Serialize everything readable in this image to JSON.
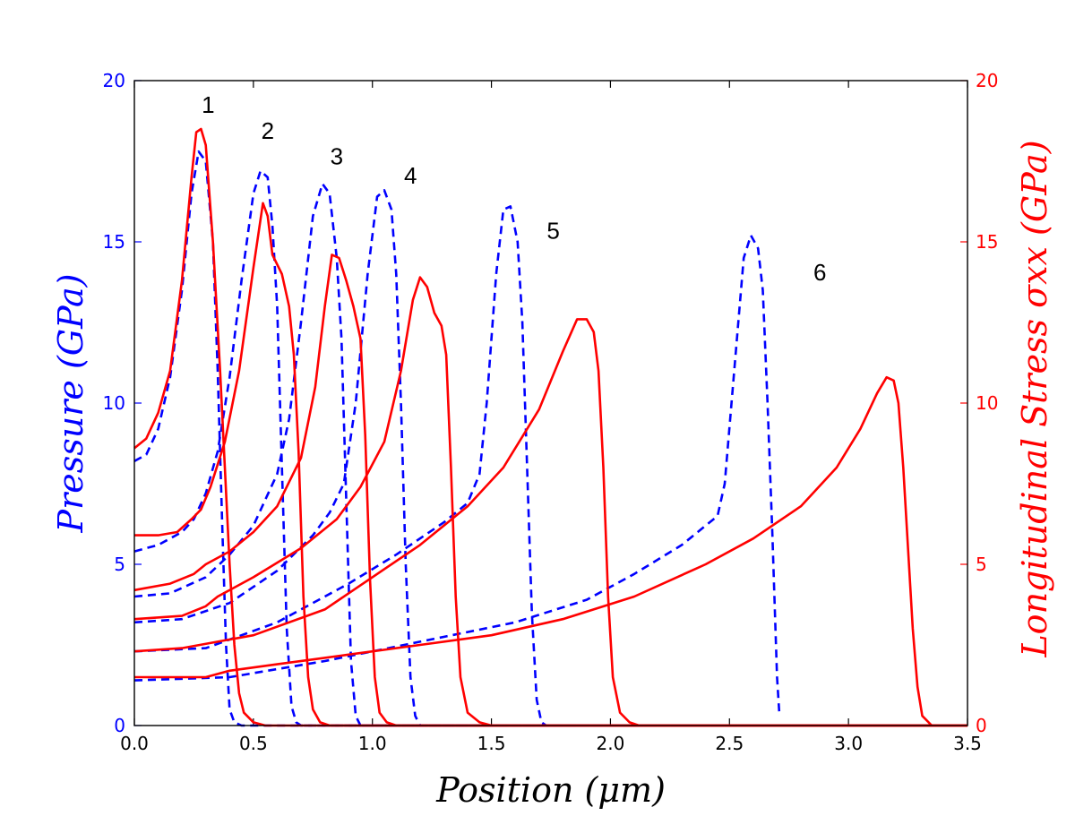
{
  "chart_data": {
    "type": "line",
    "xlabel": "Position (μm)",
    "ylabel_left": "Pressure (GPa)",
    "ylabel_right": "Longitudinal Stress σxx (GPa)",
    "xlim": [
      0.0,
      3.5
    ],
    "ylim_left": [
      0,
      20
    ],
    "ylim_right": [
      0,
      20
    ],
    "x_ticks": [
      "0.0",
      "0.5",
      "1.0",
      "1.5",
      "2.0",
      "2.5",
      "3.0",
      "3.5"
    ],
    "y_ticks_left": [
      "0",
      "5",
      "10",
      "15",
      "20"
    ],
    "y_ticks_right": [
      "0",
      "5",
      "10",
      "15",
      "20"
    ],
    "grid": false,
    "colors": {
      "pressure": "#0000ff",
      "stress": "#ff0000",
      "axes": "#000000"
    },
    "curve_labels": [
      {
        "text": "1",
        "x": 0.31,
        "y": 19.0
      },
      {
        "text": "2",
        "x": 0.56,
        "y": 18.2
      },
      {
        "text": "3",
        "x": 0.85,
        "y": 17.4
      },
      {
        "text": "4",
        "x": 1.16,
        "y": 16.8
      },
      {
        "text": "5",
        "x": 1.76,
        "y": 15.1
      },
      {
        "text": "6",
        "x": 2.88,
        "y": 13.8
      }
    ],
    "series": [
      {
        "group": "pressure",
        "style": "dashed",
        "points": [
          [
            0.0,
            8.2
          ],
          [
            0.05,
            8.4
          ],
          [
            0.1,
            9.2
          ],
          [
            0.15,
            10.8
          ],
          [
            0.2,
            13.5
          ],
          [
            0.24,
            16.5
          ],
          [
            0.27,
            17.8
          ],
          [
            0.3,
            17.5
          ],
          [
            0.33,
            15.0
          ],
          [
            0.35,
            11.0
          ],
          [
            0.37,
            6.0
          ],
          [
            0.385,
            2.5
          ],
          [
            0.4,
            0.5
          ],
          [
            0.42,
            0.1
          ],
          [
            0.45,
            0.0
          ],
          [
            3.5,
            0.0
          ]
        ]
      },
      {
        "group": "pressure",
        "style": "dashed",
        "points": [
          [
            0.0,
            5.4
          ],
          [
            0.1,
            5.6
          ],
          [
            0.2,
            6.0
          ],
          [
            0.25,
            6.4
          ],
          [
            0.3,
            7.2
          ],
          [
            0.35,
            8.5
          ],
          [
            0.4,
            10.8
          ],
          [
            0.45,
            13.8
          ],
          [
            0.5,
            16.5
          ],
          [
            0.53,
            17.2
          ],
          [
            0.56,
            17.0
          ],
          [
            0.58,
            15.5
          ],
          [
            0.6,
            13.0
          ],
          [
            0.62,
            8.0
          ],
          [
            0.64,
            3.0
          ],
          [
            0.66,
            0.6
          ],
          [
            0.68,
            0.1
          ],
          [
            0.7,
            0.0
          ],
          [
            3.5,
            0.0
          ]
        ]
      },
      {
        "group": "pressure",
        "style": "dashed",
        "points": [
          [
            0.0,
            4.0
          ],
          [
            0.15,
            4.1
          ],
          [
            0.3,
            4.6
          ],
          [
            0.4,
            5.3
          ],
          [
            0.5,
            6.2
          ],
          [
            0.55,
            7.0
          ],
          [
            0.6,
            7.8
          ],
          [
            0.65,
            9.5
          ],
          [
            0.7,
            12.5
          ],
          [
            0.75,
            15.8
          ],
          [
            0.79,
            16.8
          ],
          [
            0.82,
            16.5
          ],
          [
            0.85,
            14.5
          ],
          [
            0.87,
            12.0
          ],
          [
            0.89,
            7.0
          ],
          [
            0.91,
            2.0
          ],
          [
            0.93,
            0.3
          ],
          [
            0.95,
            0.0
          ],
          [
            3.5,
            0.0
          ]
        ]
      },
      {
        "group": "pressure",
        "style": "dashed",
        "points": [
          [
            0.0,
            3.2
          ],
          [
            0.2,
            3.3
          ],
          [
            0.4,
            3.8
          ],
          [
            0.6,
            4.8
          ],
          [
            0.75,
            5.9
          ],
          [
            0.82,
            6.6
          ],
          [
            0.88,
            7.5
          ],
          [
            0.93,
            10.0
          ],
          [
            0.98,
            14.0
          ],
          [
            1.02,
            16.4
          ],
          [
            1.05,
            16.6
          ],
          [
            1.08,
            16.0
          ],
          [
            1.1,
            14.0
          ],
          [
            1.12,
            10.0
          ],
          [
            1.14,
            5.0
          ],
          [
            1.16,
            1.5
          ],
          [
            1.18,
            0.3
          ],
          [
            1.2,
            0.0
          ],
          [
            3.5,
            0.0
          ]
        ]
      },
      {
        "group": "pressure",
        "style": "dashed",
        "points": [
          [
            0.0,
            2.3
          ],
          [
            0.3,
            2.4
          ],
          [
            0.6,
            3.2
          ],
          [
            0.9,
            4.4
          ],
          [
            1.1,
            5.3
          ],
          [
            1.3,
            6.3
          ],
          [
            1.4,
            6.9
          ],
          [
            1.45,
            7.8
          ],
          [
            1.48,
            10.0
          ],
          [
            1.52,
            14.0
          ],
          [
            1.55,
            16.0
          ],
          [
            1.58,
            16.1
          ],
          [
            1.61,
            15.0
          ],
          [
            1.63,
            12.5
          ],
          [
            1.65,
            8.0
          ],
          [
            1.67,
            3.5
          ],
          [
            1.69,
            0.8
          ],
          [
            1.71,
            0.1
          ],
          [
            1.73,
            0.0
          ],
          [
            3.5,
            0.0
          ]
        ]
      },
      {
        "group": "pressure",
        "style": "dashed",
        "points": [
          [
            0.0,
            1.4
          ],
          [
            0.4,
            1.5
          ],
          [
            0.8,
            2.0
          ],
          [
            1.2,
            2.6
          ],
          [
            1.6,
            3.2
          ],
          [
            1.9,
            3.9
          ],
          [
            2.1,
            4.7
          ],
          [
            2.3,
            5.6
          ],
          [
            2.45,
            6.5
          ],
          [
            2.48,
            7.5
          ],
          [
            2.52,
            11.0
          ],
          [
            2.56,
            14.5
          ],
          [
            2.59,
            15.2
          ],
          [
            2.62,
            14.8
          ],
          [
            2.64,
            13.5
          ],
          [
            2.66,
            10.0
          ],
          [
            2.68,
            6.0
          ],
          [
            2.7,
            1.5
          ],
          [
            2.71,
            0.3
          ]
        ]
      },
      {
        "group": "stress",
        "style": "solid",
        "points": [
          [
            0.0,
            8.6
          ],
          [
            0.05,
            8.9
          ],
          [
            0.1,
            9.7
          ],
          [
            0.15,
            11.0
          ],
          [
            0.2,
            13.8
          ],
          [
            0.24,
            17.0
          ],
          [
            0.26,
            18.4
          ],
          [
            0.28,
            18.5
          ],
          [
            0.3,
            18.0
          ],
          [
            0.33,
            15.0
          ],
          [
            0.36,
            11.0
          ],
          [
            0.38,
            8.0
          ],
          [
            0.4,
            5.0
          ],
          [
            0.42,
            2.5
          ],
          [
            0.44,
            1.0
          ],
          [
            0.46,
            0.4
          ],
          [
            0.5,
            0.1
          ],
          [
            0.55,
            0.0
          ],
          [
            3.5,
            0.0
          ]
        ]
      },
      {
        "group": "stress",
        "style": "solid",
        "points": [
          [
            0.0,
            5.9
          ],
          [
            0.1,
            5.9
          ],
          [
            0.18,
            6.0
          ],
          [
            0.24,
            6.4
          ],
          [
            0.28,
            6.7
          ],
          [
            0.32,
            7.4
          ],
          [
            0.38,
            8.8
          ],
          [
            0.44,
            11.0
          ],
          [
            0.5,
            14.2
          ],
          [
            0.54,
            16.2
          ],
          [
            0.56,
            15.8
          ],
          [
            0.58,
            14.6
          ],
          [
            0.62,
            14.0
          ],
          [
            0.65,
            13.0
          ],
          [
            0.67,
            11.5
          ],
          [
            0.69,
            8.5
          ],
          [
            0.71,
            4.0
          ],
          [
            0.73,
            1.5
          ],
          [
            0.75,
            0.5
          ],
          [
            0.78,
            0.1
          ],
          [
            0.82,
            0.0
          ],
          [
            3.5,
            0.0
          ]
        ]
      },
      {
        "group": "stress",
        "style": "solid",
        "points": [
          [
            0.0,
            4.2
          ],
          [
            0.15,
            4.4
          ],
          [
            0.25,
            4.7
          ],
          [
            0.3,
            5.0
          ],
          [
            0.4,
            5.4
          ],
          [
            0.5,
            6.0
          ],
          [
            0.6,
            6.8
          ],
          [
            0.7,
            8.3
          ],
          [
            0.76,
            10.5
          ],
          [
            0.8,
            13.0
          ],
          [
            0.83,
            14.6
          ],
          [
            0.86,
            14.5
          ],
          [
            0.89,
            13.8
          ],
          [
            0.92,
            13.0
          ],
          [
            0.95,
            12.0
          ],
          [
            0.97,
            9.0
          ],
          [
            0.99,
            4.5
          ],
          [
            1.01,
            1.5
          ],
          [
            1.03,
            0.4
          ],
          [
            1.06,
            0.1
          ],
          [
            1.1,
            0.0
          ],
          [
            3.5,
            0.0
          ]
        ]
      },
      {
        "group": "stress",
        "style": "solid",
        "points": [
          [
            0.0,
            3.3
          ],
          [
            0.2,
            3.4
          ],
          [
            0.3,
            3.7
          ],
          [
            0.35,
            4.0
          ],
          [
            0.5,
            4.6
          ],
          [
            0.7,
            5.5
          ],
          [
            0.85,
            6.4
          ],
          [
            0.95,
            7.4
          ],
          [
            1.05,
            8.8
          ],
          [
            1.12,
            11.0
          ],
          [
            1.17,
            13.2
          ],
          [
            1.2,
            13.9
          ],
          [
            1.23,
            13.6
          ],
          [
            1.26,
            12.8
          ],
          [
            1.29,
            12.4
          ],
          [
            1.31,
            11.5
          ],
          [
            1.33,
            8.0
          ],
          [
            1.35,
            4.0
          ],
          [
            1.37,
            1.5
          ],
          [
            1.4,
            0.4
          ],
          [
            1.45,
            0.1
          ],
          [
            1.5,
            0.0
          ],
          [
            3.5,
            0.0
          ]
        ]
      },
      {
        "group": "stress",
        "style": "solid",
        "points": [
          [
            0.0,
            2.3
          ],
          [
            0.2,
            2.4
          ],
          [
            0.35,
            2.6
          ],
          [
            0.5,
            2.8
          ],
          [
            0.8,
            3.6
          ],
          [
            1.0,
            4.6
          ],
          [
            1.2,
            5.6
          ],
          [
            1.4,
            6.8
          ],
          [
            1.55,
            8.0
          ],
          [
            1.7,
            9.8
          ],
          [
            1.8,
            11.6
          ],
          [
            1.86,
            12.6
          ],
          [
            1.9,
            12.6
          ],
          [
            1.93,
            12.2
          ],
          [
            1.95,
            11.0
          ],
          [
            1.97,
            8.0
          ],
          [
            1.99,
            4.0
          ],
          [
            2.01,
            1.5
          ],
          [
            2.04,
            0.4
          ],
          [
            2.08,
            0.1
          ],
          [
            2.12,
            0.0
          ],
          [
            3.5,
            0.0
          ]
        ]
      },
      {
        "group": "stress",
        "style": "solid",
        "points": [
          [
            0.0,
            1.5
          ],
          [
            0.3,
            1.5
          ],
          [
            0.4,
            1.7
          ],
          [
            0.6,
            1.9
          ],
          [
            0.9,
            2.2
          ],
          [
            1.2,
            2.5
          ],
          [
            1.5,
            2.8
          ],
          [
            1.8,
            3.3
          ],
          [
            2.1,
            4.0
          ],
          [
            2.4,
            5.0
          ],
          [
            2.6,
            5.8
          ],
          [
            2.8,
            6.8
          ],
          [
            2.95,
            8.0
          ],
          [
            3.05,
            9.2
          ],
          [
            3.12,
            10.3
          ],
          [
            3.16,
            10.8
          ],
          [
            3.19,
            10.7
          ],
          [
            3.21,
            10.0
          ],
          [
            3.23,
            8.0
          ],
          [
            3.25,
            5.5
          ],
          [
            3.27,
            3.0
          ],
          [
            3.29,
            1.2
          ],
          [
            3.31,
            0.3
          ],
          [
            3.35,
            0.0
          ],
          [
            3.5,
            0.0
          ]
        ]
      }
    ]
  }
}
